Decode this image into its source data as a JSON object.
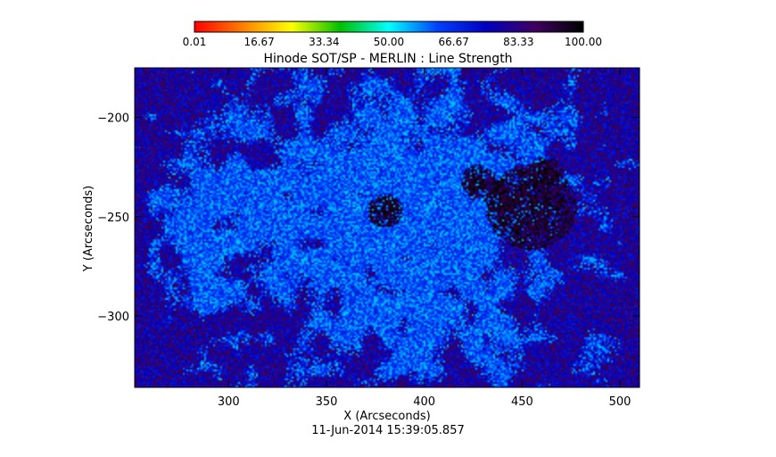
{
  "chart_data": {
    "type": "heatmap",
    "title": "Hinode SOT/SP - MERLIN : Line Strength",
    "xlabel": "X (Arcseconds)",
    "ylabel": "Y (Arcseconds)",
    "xlim": [
      252,
      510
    ],
    "ylim": [
      -336,
      -175
    ],
    "x_ticks": [
      300,
      350,
      400,
      450,
      500
    ],
    "x_tick_labels": [
      "300",
      "350",
      "400",
      "450",
      "500"
    ],
    "y_ticks": [
      -200,
      -250,
      -300
    ],
    "y_tick_labels": [
      "−200",
      "−250",
      "−300"
    ],
    "colorbar": {
      "range": [
        0.01,
        100.0
      ],
      "tick_values": [
        0.01,
        16.67,
        33.34,
        50.0,
        66.67,
        83.33,
        100.0
      ],
      "tick_labels": [
        "0.01",
        "16.67",
        "33.34",
        "50.00",
        "66.67",
        "83.33",
        "100.00"
      ],
      "colormap": [
        "#ff0000",
        "#ff8000",
        "#ffff00",
        "#00c000",
        "#00ffff",
        "#0040ff",
        "#0000c0",
        "#400060",
        "#000000"
      ]
    },
    "features": {
      "background_level": 80,
      "bright_region_level": 62,
      "dark_spot_level": 95,
      "dark_spots_xy": [
        [
          455,
          -245
        ],
        [
          380,
          -247
        ],
        [
          428,
          -232
        ],
        [
          440,
          -240
        ],
        [
          462,
          -228
        ]
      ]
    },
    "timestamp": "11-Jun-2014 15:39:05.857"
  }
}
